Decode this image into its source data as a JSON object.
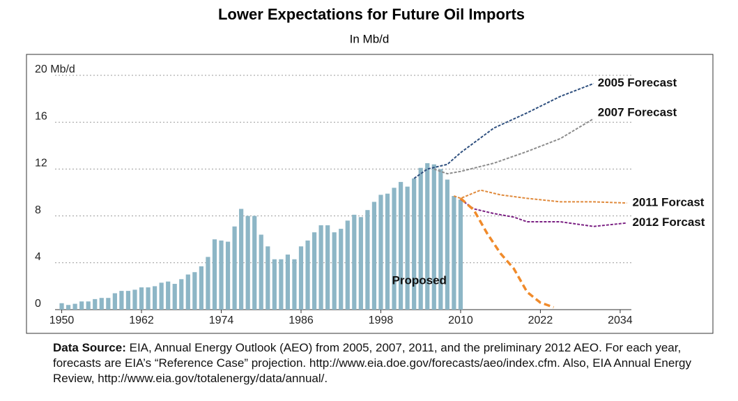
{
  "chart_data": {
    "type": "combo",
    "title": "Lower Expectations for Future Oil Imports",
    "subtitle": "In Mb/d",
    "x": [
      1950,
      1951,
      1952,
      1953,
      1954,
      1955,
      1956,
      1957,
      1958,
      1959,
      1960,
      1961,
      1962,
      1963,
      1964,
      1965,
      1966,
      1967,
      1968,
      1969,
      1970,
      1971,
      1972,
      1973,
      1974,
      1975,
      1976,
      1977,
      1978,
      1979,
      1980,
      1981,
      1982,
      1983,
      1984,
      1985,
      1986,
      1987,
      1988,
      1989,
      1990,
      1991,
      1992,
      1993,
      1994,
      1995,
      1996,
      1997,
      1998,
      1999,
      2000,
      2001,
      2002,
      2003,
      2004,
      2005,
      2006,
      2007,
      2008,
      2009,
      2010
    ],
    "values": [
      0.55,
      0.4,
      0.5,
      0.7,
      0.7,
      0.9,
      1.0,
      1.0,
      1.4,
      1.6,
      1.6,
      1.7,
      1.9,
      1.9,
      2.0,
      2.3,
      2.4,
      2.2,
      2.6,
      3.0,
      3.2,
      3.7,
      4.5,
      6.0,
      5.9,
      5.8,
      7.1,
      8.6,
      8.0,
      8.0,
      6.4,
      5.4,
      4.3,
      4.3,
      4.7,
      4.3,
      5.4,
      5.9,
      6.6,
      7.2,
      7.2,
      6.6,
      6.9,
      7.6,
      8.1,
      7.9,
      8.5,
      9.2,
      9.8,
      9.9,
      10.4,
      10.9,
      10.5,
      11.2,
      12.1,
      12.5,
      12.4,
      12.0,
      11.1,
      9.7,
      9.4
    ],
    "color": "#8db6c6",
    "series": [
      {
        "name": "2005 Forecast",
        "color": "#2e4f7e",
        "x": [
          2003,
          2005,
          2008,
          2010,
          2015,
          2020,
          2025,
          2030
        ],
        "values": [
          11.2,
          12.0,
          12.4,
          13.4,
          15.5,
          16.8,
          18.2,
          19.3
        ]
      },
      {
        "name": "2007 Forecast",
        "color": "#8c8c8c",
        "x": [
          2006,
          2008,
          2010,
          2015,
          2020,
          2025,
          2030
        ],
        "values": [
          12.0,
          11.6,
          11.8,
          12.5,
          13.5,
          14.6,
          16.3
        ]
      },
      {
        "name": "2011 Forcast",
        "color": "#e08a3c",
        "x": [
          2009,
          2010,
          2013,
          2016,
          2020,
          2025,
          2030,
          2035
        ],
        "values": [
          9.7,
          9.5,
          10.2,
          9.8,
          9.5,
          9.2,
          9.2,
          9.1
        ]
      },
      {
        "name": "2012 Forcast",
        "color": "#7a1f82",
        "x": [
          2010,
          2012,
          2015,
          2018,
          2020,
          2025,
          2030,
          2035
        ],
        "values": [
          9.4,
          8.6,
          8.2,
          7.9,
          7.5,
          7.5,
          7.1,
          7.4
        ]
      },
      {
        "name": "Proposed",
        "color": "#f08a2a",
        "x": [
          2010,
          2012,
          2014,
          2016,
          2018,
          2020,
          2022,
          2024
        ],
        "values": [
          9.5,
          8.5,
          6.5,
          4.8,
          3.5,
          1.5,
          0.6,
          0.2
        ]
      }
    ],
    "xlim": [
      1949,
      2036
    ],
    "xticks": [
      1950,
      1962,
      1974,
      1986,
      1998,
      2010,
      2022,
      2034
    ],
    "ylim": [
      0,
      20
    ],
    "yticks": [
      0,
      4,
      8,
      12,
      16,
      {
        "value": 20,
        "label": "20 Mb/d"
      }
    ],
    "grid": true,
    "caption_label": "Data Source:",
    "caption": "EIA, Annual Energy Outlook (AEO) from 2005, 2007, 2011, and the preliminary 2012 AEO. For each year, forecasts are EIA’s “Reference Case” projection. http://www.eia.doe.gov/forecasts/aeo/index.cfm. Also, EIA Annual Energy Review, http://www.eia.gov/totalenergy/data/annual/."
  }
}
